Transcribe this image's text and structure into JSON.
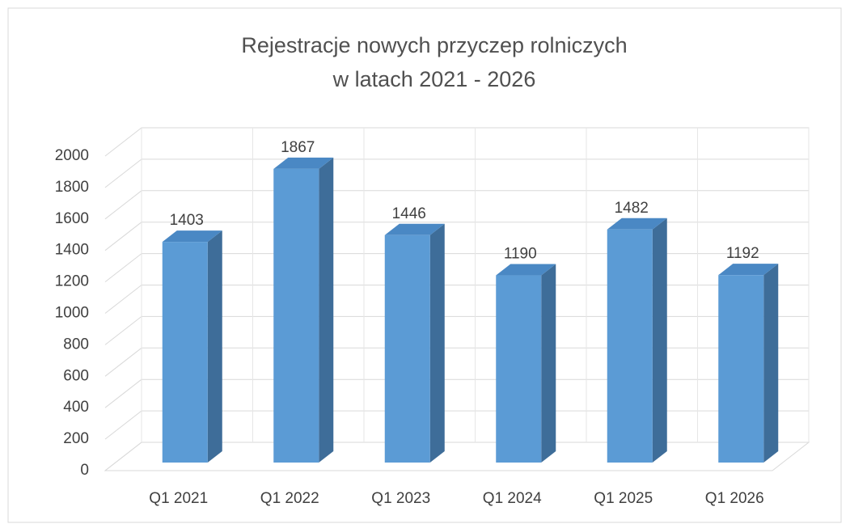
{
  "chart_data": {
    "type": "bar3d",
    "title": [
      "Rejestracje nowych przyczep rolniczych",
      "w latach 2021 - 2026"
    ],
    "categories": [
      "Q1 2021",
      "Q1 2022",
      "Q1 2023",
      "Q1 2024",
      "Q1 2025",
      "Q1 2026"
    ],
    "values": [
      1403,
      1867,
      1446,
      1190,
      1482,
      1192
    ],
    "color": "#5b9bd5",
    "ylim": [
      0,
      2000
    ],
    "yticks": [
      0,
      200,
      400,
      600,
      800,
      1000,
      1200,
      1400,
      1600,
      1800,
      2000
    ],
    "grid": true
  }
}
